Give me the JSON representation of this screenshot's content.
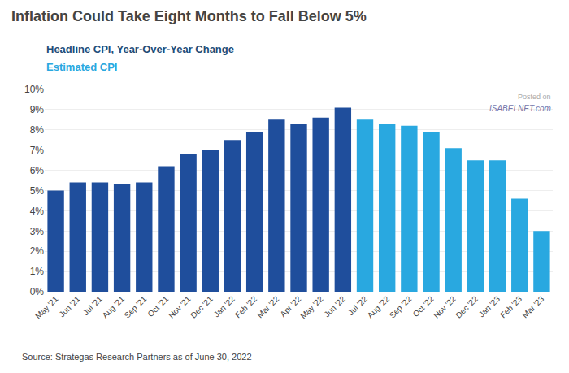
{
  "chart_data": {
    "type": "bar",
    "title": "Inflation Could Take Eight Months to Fall Below 5%",
    "categories": [
      "May '21",
      "Jun '21",
      "Jul '21",
      "Aug '21",
      "Sep '21",
      "Oct '21",
      "Nov '21",
      "Dec '21",
      "Jan '22",
      "Feb '22",
      "Mar '22",
      "Apr '22",
      "May '22",
      "Jun '22",
      "Jul '22",
      "Aug '22",
      "Sep '22",
      "Oct '22",
      "Nov '22",
      "Dec '22",
      "Jan '23",
      "Feb '23",
      "Mar '23"
    ],
    "values": [
      5.0,
      5.4,
      5.4,
      5.3,
      5.4,
      6.2,
      6.8,
      7.0,
      7.5,
      7.9,
      8.5,
      8.3,
      8.6,
      9.1,
      8.5,
      8.3,
      8.2,
      7.9,
      7.1,
      6.5,
      6.5,
      4.6,
      3.0
    ],
    "colors": [
      "#1f4e9c",
      "#1f4e9c",
      "#1f4e9c",
      "#1f4e9c",
      "#1f4e9c",
      "#1f4e9c",
      "#1f4e9c",
      "#1f4e9c",
      "#1f4e9c",
      "#1f4e9c",
      "#1f4e9c",
      "#1f4e9c",
      "#1f4e9c",
      "#1f4e9c",
      "#29a8e0",
      "#29a8e0",
      "#29a8e0",
      "#29a8e0",
      "#29a8e0",
      "#29a8e0",
      "#29a8e0",
      "#29a8e0",
      "#29a8e0"
    ],
    "ylim": [
      0,
      10
    ],
    "yticks": [
      {
        "value": 0,
        "label": "0%"
      },
      {
        "value": 1,
        "label": "1%"
      },
      {
        "value": 2,
        "label": "2%"
      },
      {
        "value": 3,
        "label": "3%"
      },
      {
        "value": 4,
        "label": "4%"
      },
      {
        "value": 5,
        "label": "5%"
      },
      {
        "value": 6,
        "label": "6%"
      },
      {
        "value": 7,
        "label": "7%"
      },
      {
        "value": 8,
        "label": "8%"
      },
      {
        "value": 9,
        "label": "9%"
      },
      {
        "value": 10,
        "label": "10%"
      }
    ],
    "grid": true,
    "annotations": [
      {
        "text": "Headline CPI, Year-Over-Year Change",
        "color": "#1f4e79"
      },
      {
        "text": "Estimated CPI",
        "color": "#29a8e0"
      },
      {
        "text": "Source: Strategas Research Partners as of June 30, 2022",
        "color": "#444444"
      },
      {
        "text": "Posted on",
        "color": "#aaaaaa"
      },
      {
        "text": "ISABELNET.com",
        "color": "#7777aa"
      }
    ]
  }
}
